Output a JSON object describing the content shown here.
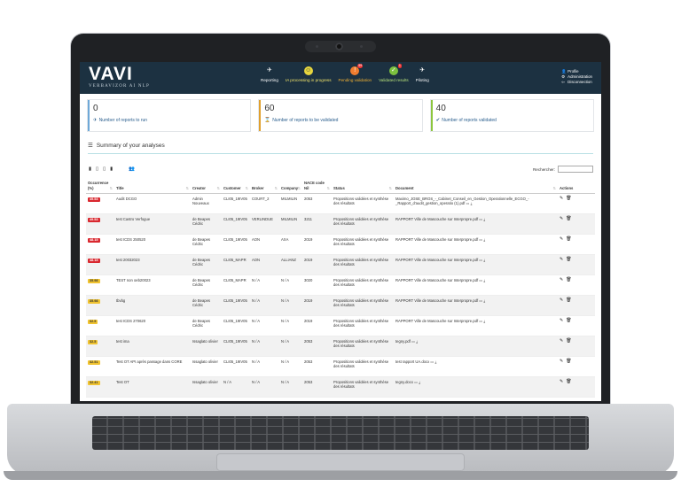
{
  "app": {
    "logo_text": "VAVI",
    "logo_subtitle": "VERBAVIZOR AI NLP",
    "nav": [
      {
        "label": "Reporting",
        "icon": "plane-icon",
        "color": "#ffffff"
      },
      {
        "label": "IA processing in progress",
        "icon": "smile-icon",
        "color": "#e7d63e"
      },
      {
        "label": "Pending validation",
        "icon": "alert-icon",
        "color": "#f07d2f",
        "badge": "59"
      },
      {
        "label": "Validated results",
        "icon": "check-icon",
        "color": "#7cc13f",
        "badge": "1"
      },
      {
        "label": "Piloting",
        "icon": "plane-land-icon",
        "color": "#ffffff"
      }
    ],
    "user_menu": {
      "profile": "Profile",
      "admin": "Administration",
      "logout": "Disconnection"
    }
  },
  "stats": [
    {
      "value": "0",
      "label": "Number of reports to run",
      "color": "#6fa9d8",
      "icon": "plane-icon"
    },
    {
      "value": "60",
      "label": "Number of reports to be validated",
      "color": "#e0a02e",
      "icon": "hourglass-icon"
    },
    {
      "value": "40",
      "label": "Number of reports validated",
      "color": "#8cc63e",
      "icon": "check-circle-icon"
    }
  ],
  "summary": {
    "title": "Summary of your analyses"
  },
  "search": {
    "label": "Rechercher:",
    "value": ""
  },
  "table": {
    "headers": [
      "Occurrence (%)",
      "Title",
      "Creator",
      "Customer",
      "Broker",
      "Company",
      "NACE code Nil",
      "Status",
      "Document",
      "Actions"
    ],
    "rows": [
      {
        "occ": "49.53",
        "occ_color": "red",
        "title": "Audit DCGO",
        "creator": "Admin Nouveaux",
        "customer": "CLI05_19IV05",
        "broker": "COURT_2",
        "company": "MILMILIN",
        "nace": "2053",
        "status": "Propositions validées et synthèse des résultats",
        "document": "Maximo_JOSE_BROS_-_Cabinet_Conseil_en_Gestion_Operationnelle_ECGO_-_Rapport_d'audit_gestion_operatio (1).pdf"
      },
      {
        "occ": "49.53",
        "occ_color": "red",
        "title": "test Castro Verfogue",
        "creator": "de Beapes Cédric",
        "customer": "CLI05_19IV05",
        "broker": "VERLINDUE",
        "company": "MILMILIN",
        "nace": "3211",
        "status": "Propositions validées et synthèse des résultats",
        "document": "RAPPORT Ville de Mascouche sur Interpropre.pdf"
      },
      {
        "occ": "48.15",
        "occ_color": "red",
        "title": "test ICDS 250520",
        "creator": "de Beapes Cédric",
        "customer": "CLI05_19IV05",
        "broker": "AON",
        "company": "AXA",
        "nace": "2019",
        "status": "Propositions validées et synthèse des résultats",
        "document": "RAPPORT Ville de Mascouche sur Interpropre.pdf"
      },
      {
        "occ": "48.15",
        "occ_color": "red",
        "title": "test 20032023",
        "creator": "de Beapes Cédric",
        "customer": "CLI05_MAPR",
        "broker": "AON",
        "company": "ALLIANZ",
        "nace": "2019",
        "status": "Propositions validées et synthèse des résultats",
        "document": "RAPPORT Ville de Mascouche sur Interpropre.pdf"
      },
      {
        "occ": "35.98",
        "occ_color": "yellow",
        "title": "TEST non oeb20023",
        "creator": "de Beapes Cédric",
        "customer": "CLI05_MAPR",
        "broker": "N / A",
        "company": "N / A",
        "nace": "3020",
        "status": "Propositions validées et synthèse des résultats",
        "document": "RAPPORT Ville de Mascouche sur Interpropre.pdf"
      },
      {
        "occ": "35.98",
        "occ_color": "yellow",
        "title": "tbvbg",
        "creator": "de Beapes Cédric",
        "customer": "CLI05_19IV05",
        "broker": "N / A",
        "company": "N / A",
        "nace": "2019",
        "status": "Propositions validées et synthèse des résultats",
        "document": "RAPPORT Ville de Mascouche sur Interpropre.pdf"
      },
      {
        "occ": "32.5",
        "occ_color": "yellow",
        "title": "test ICDS 270620",
        "creator": "de Beapes Cédric",
        "customer": "CLI05_19IV05",
        "broker": "N / A",
        "company": "N / A",
        "nace": "2019",
        "status": "Propositions validées et synthèse des résultats",
        "document": "RAPPORT Ville de Mascouche sur Interpropre.pdf"
      },
      {
        "occ": "32.5",
        "occ_color": "yellow",
        "title": "test ima",
        "creator": "Issaglato olivier",
        "customer": "CLI05_19IV05",
        "broker": "N / A",
        "company": "N / A",
        "nace": "2053",
        "status": "Propositions validées et synthèse des résultats",
        "document": "tegny.pdf"
      },
      {
        "occ": "32.51",
        "occ_color": "yellow",
        "title": "Test OT API après passage dans CORE",
        "creator": "Issaglato olivier",
        "customer": "CLI05_19IV05",
        "broker": "N / A",
        "company": "N / A",
        "nace": "2053",
        "status": "Propositions validées et synthèse des résultats",
        "document": "test rapport UA.docx"
      },
      {
        "occ": "32.41",
        "occ_color": "yellow",
        "title": "Test OT",
        "creator": "Issaglato olivier",
        "customer": "N / A",
        "broker": "N / A",
        "company": "N / A",
        "nace": "2053",
        "status": "Propositions validées et synthèse des résultats",
        "document": "tegny.docx"
      }
    ]
  }
}
